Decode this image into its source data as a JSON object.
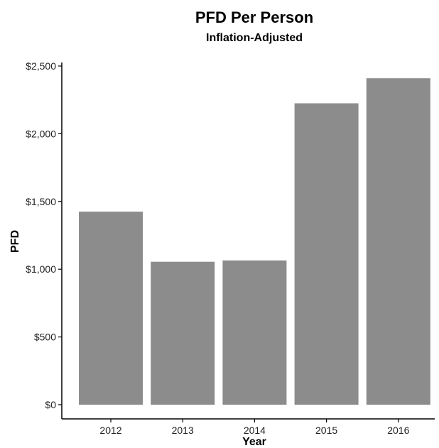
{
  "chart_data": {
    "type": "bar",
    "title": "PFD Per Person",
    "subtitle": "Inflation-Adjusted",
    "xlabel": "Year",
    "ylabel": "PFD",
    "categories": [
      "2012",
      "2013",
      "2014",
      "2015",
      "2016"
    ],
    "values": [
      1425,
      1055,
      1065,
      2225,
      2410
    ],
    "ylim": [
      0,
      2500
    ],
    "yticks": [
      0,
      500,
      1000,
      1500,
      2000,
      2500
    ],
    "ytick_labels": [
      "$0",
      "$500",
      "$1,000",
      "$1,500",
      "$2,000",
      "$2,500"
    ],
    "grid": false,
    "bar_color": "#8c8c8c"
  }
}
